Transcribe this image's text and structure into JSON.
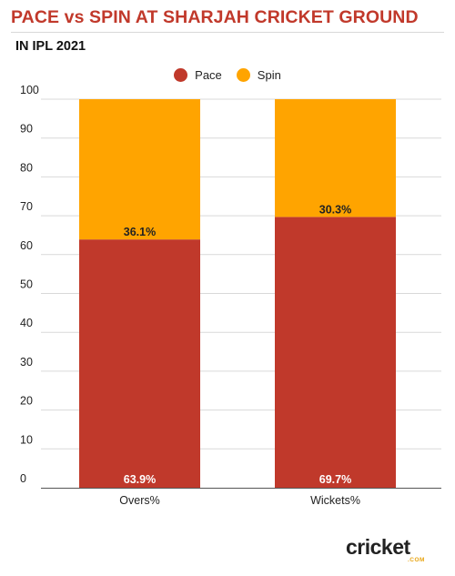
{
  "title": "PACE vs SPIN AT SHARJAH CRICKET GROUND",
  "subtitle": "IN IPL 2021",
  "logo": {
    "name": "cricket",
    "suffix": ".COM"
  },
  "colors": {
    "pace": "#c0392b",
    "spin": "#ffa400",
    "title": "#c1392b"
  },
  "chart_data": {
    "type": "bar",
    "stacked": true,
    "categories": [
      "Overs%",
      "Wickets%"
    ],
    "series": [
      {
        "name": "Pace",
        "values": [
          63.9,
          69.7
        ],
        "labels": [
          "63.9%",
          "69.7%"
        ],
        "color": "#c0392b"
      },
      {
        "name": "Spin",
        "values": [
          36.1,
          30.3
        ],
        "labels": [
          "36.1%",
          "30.3%"
        ],
        "color": "#ffa400"
      }
    ],
    "ylim": [
      0,
      100
    ],
    "yticks": [
      "0",
      "10",
      "20",
      "30",
      "40",
      "50",
      "60",
      "70",
      "80",
      "90",
      "100"
    ],
    "grid": true,
    "legend": "top-center"
  }
}
